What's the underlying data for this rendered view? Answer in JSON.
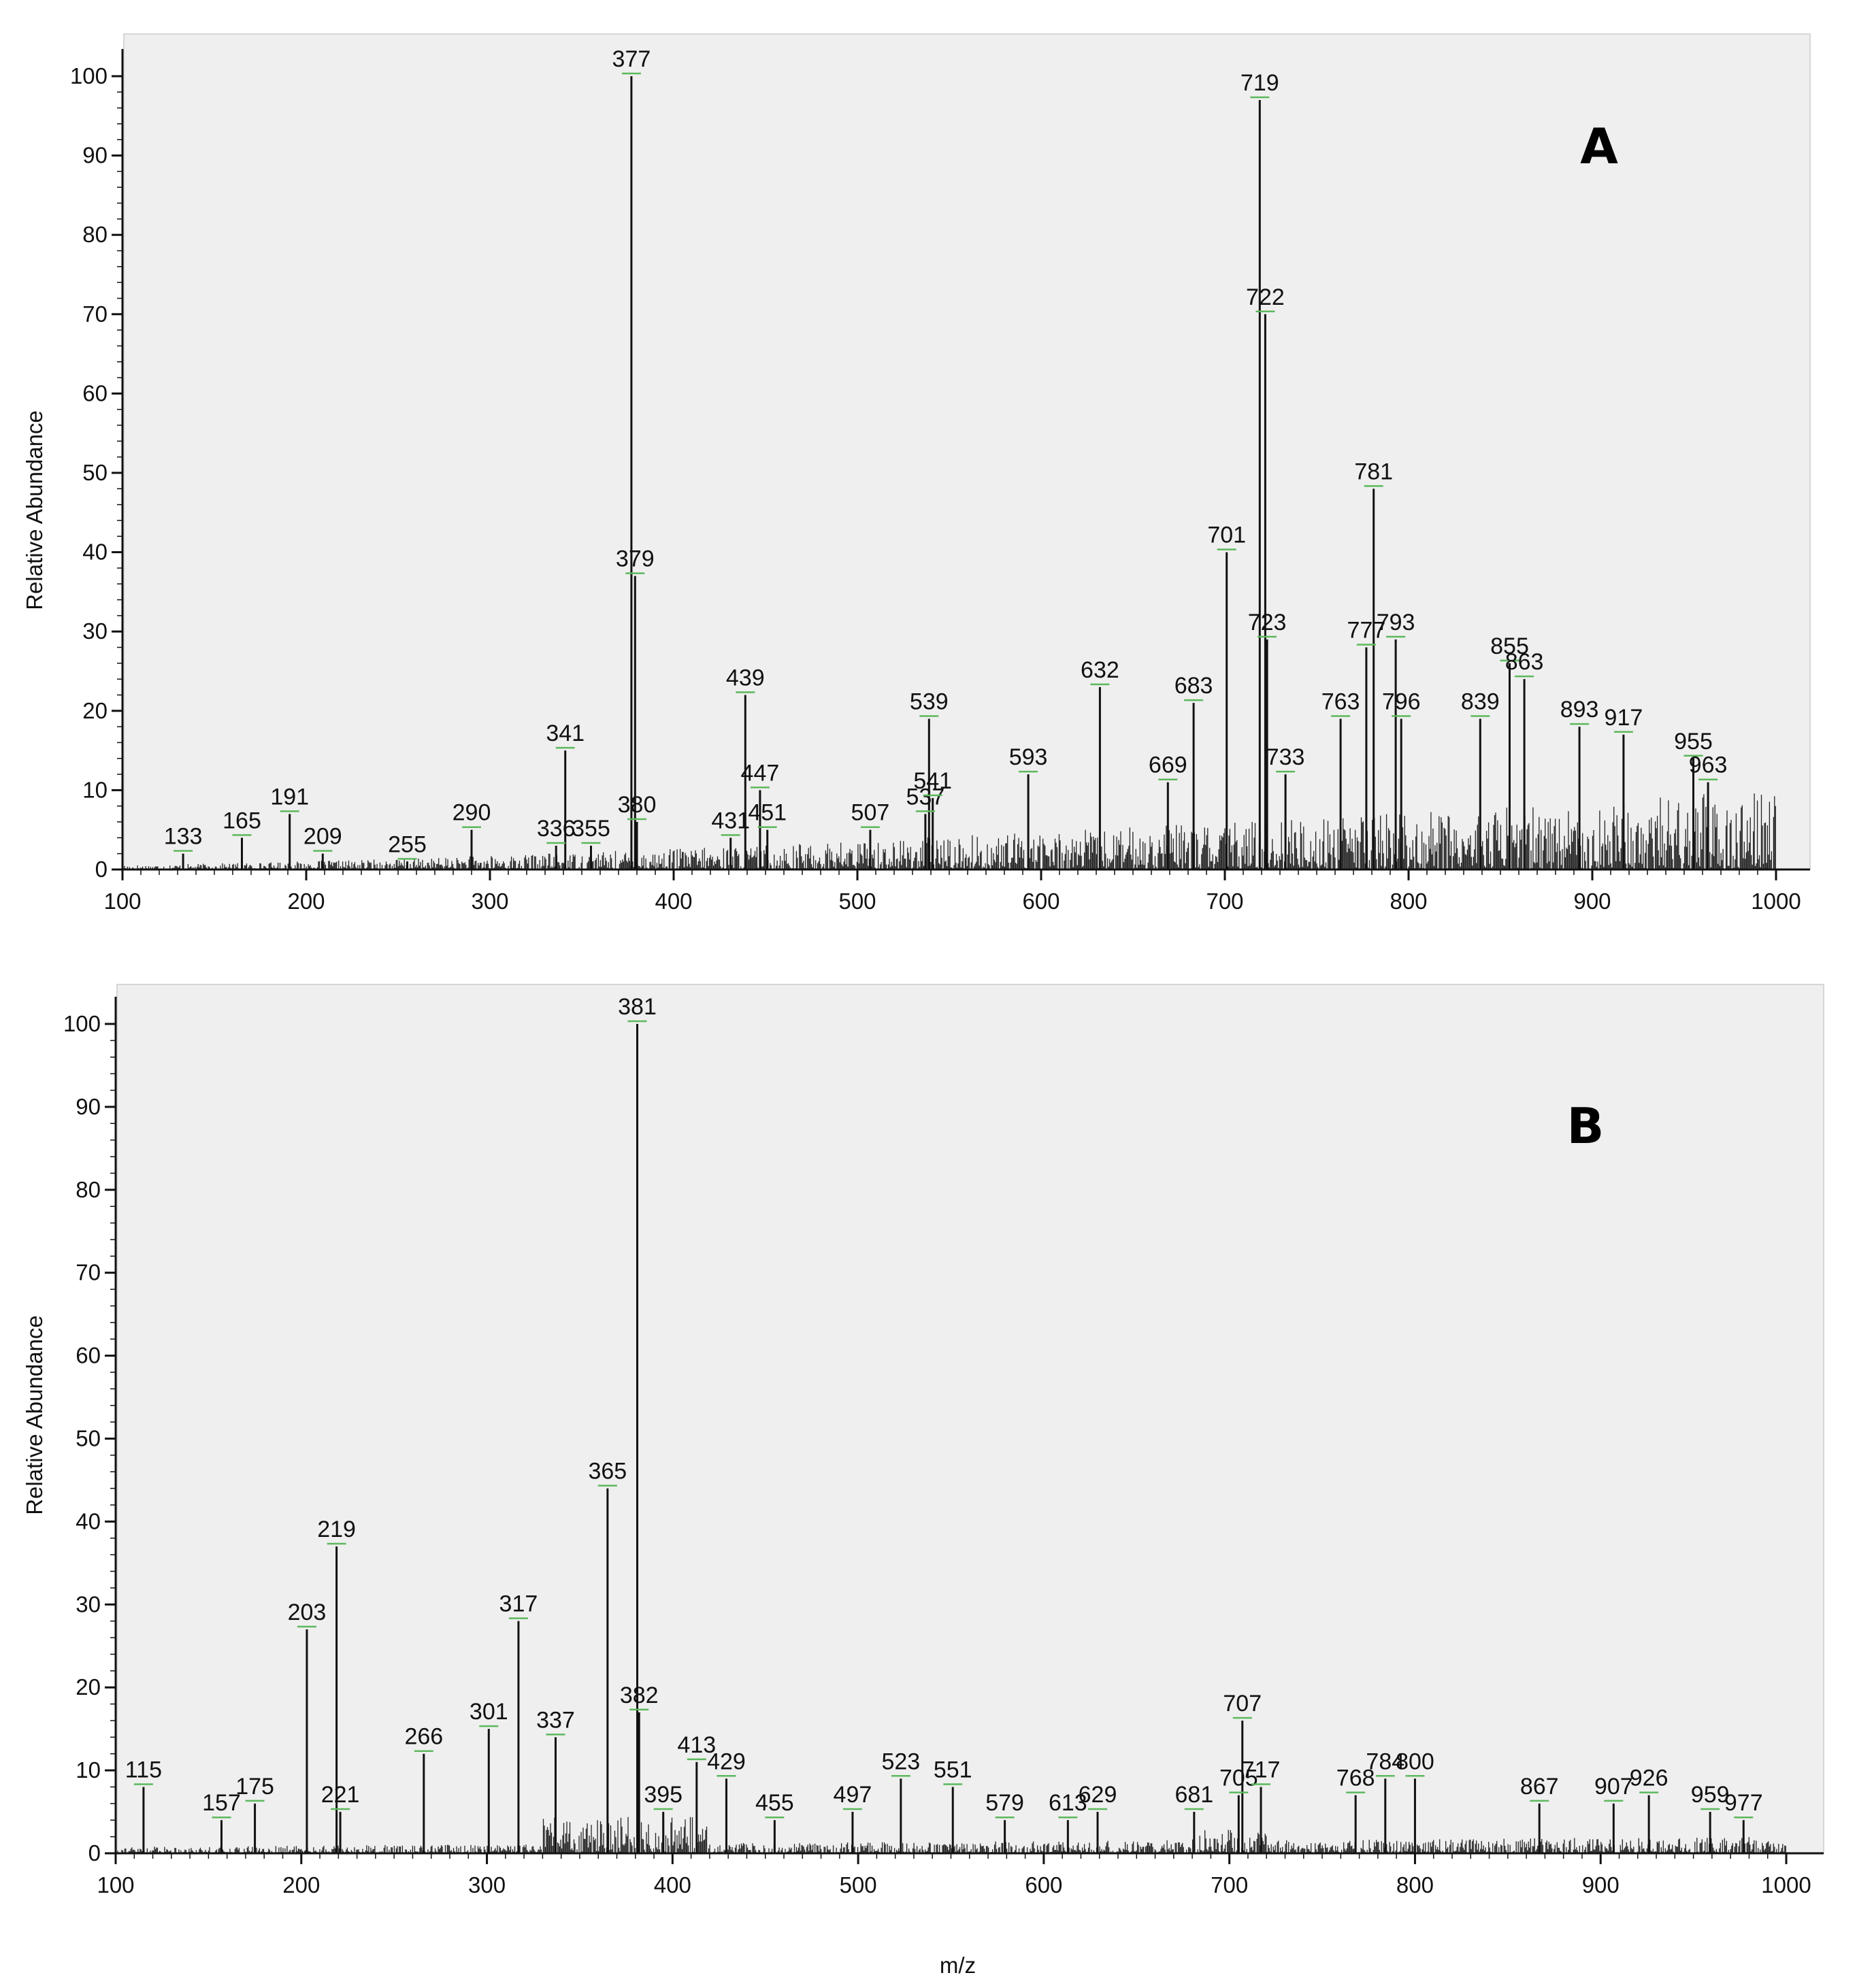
{
  "chart_data": [
    {
      "type": "bar",
      "panel_label": "A",
      "xlabel": "",
      "ylabel": "Relative Abundance",
      "xlim": [
        100,
        1000
      ],
      "ylim": [
        0,
        100
      ],
      "x_ticks": [
        100,
        200,
        300,
        400,
        500,
        600,
        700,
        800,
        900,
        1000
      ],
      "y_ticks": [
        0,
        10,
        20,
        30,
        40,
        50,
        60,
        70,
        80,
        90,
        100
      ],
      "grid": false,
      "legend": "none",
      "peaks": [
        {
          "mz": 133,
          "abundance": 2,
          "label": "133"
        },
        {
          "mz": 165,
          "abundance": 4,
          "label": "165"
        },
        {
          "mz": 191,
          "abundance": 7,
          "label": "191"
        },
        {
          "mz": 209,
          "abundance": 2,
          "label": "209"
        },
        {
          "mz": 255,
          "abundance": 1,
          "label": "255"
        },
        {
          "mz": 290,
          "abundance": 5,
          "label": "290"
        },
        {
          "mz": 336,
          "abundance": 3,
          "label": "336"
        },
        {
          "mz": 341,
          "abundance": 15,
          "label": "341"
        },
        {
          "mz": 355,
          "abundance": 3,
          "label": "355"
        },
        {
          "mz": 377,
          "abundance": 100,
          "label": "377"
        },
        {
          "mz": 379,
          "abundance": 37,
          "label": "379"
        },
        {
          "mz": 380,
          "abundance": 6,
          "label": "380"
        },
        {
          "mz": 431,
          "abundance": 4,
          "label": "431"
        },
        {
          "mz": 439,
          "abundance": 22,
          "label": "439"
        },
        {
          "mz": 447,
          "abundance": 10,
          "label": "447"
        },
        {
          "mz": 451,
          "abundance": 5,
          "label": "451"
        },
        {
          "mz": 507,
          "abundance": 5,
          "label": "507"
        },
        {
          "mz": 537,
          "abundance": 7,
          "label": "537"
        },
        {
          "mz": 539,
          "abundance": 19,
          "label": "539"
        },
        {
          "mz": 541,
          "abundance": 9,
          "label": "541"
        },
        {
          "mz": 593,
          "abundance": 12,
          "label": "593"
        },
        {
          "mz": 632,
          "abundance": 23,
          "label": "632"
        },
        {
          "mz": 669,
          "abundance": 11,
          "label": "669"
        },
        {
          "mz": 683,
          "abundance": 21,
          "label": "683"
        },
        {
          "mz": 701,
          "abundance": 40,
          "label": "701"
        },
        {
          "mz": 719,
          "abundance": 97,
          "label": "719"
        },
        {
          "mz": 722,
          "abundance": 70,
          "label": "722"
        },
        {
          "mz": 723,
          "abundance": 29,
          "label": "723"
        },
        {
          "mz": 733,
          "abundance": 12,
          "label": "733"
        },
        {
          "mz": 763,
          "abundance": 19,
          "label": "763"
        },
        {
          "mz": 777,
          "abundance": 28,
          "label": "777"
        },
        {
          "mz": 781,
          "abundance": 48,
          "label": "781"
        },
        {
          "mz": 793,
          "abundance": 29,
          "label": "793"
        },
        {
          "mz": 796,
          "abundance": 19,
          "label": "796"
        },
        {
          "mz": 839,
          "abundance": 19,
          "label": "839"
        },
        {
          "mz": 855,
          "abundance": 26,
          "label": "855"
        },
        {
          "mz": 863,
          "abundance": 24,
          "label": "863"
        },
        {
          "mz": 893,
          "abundance": 18,
          "label": "893"
        },
        {
          "mz": 917,
          "abundance": 17,
          "label": "917"
        },
        {
          "mz": 955,
          "abundance": 14,
          "label": "955"
        },
        {
          "mz": 963,
          "abundance": 11,
          "label": "963"
        }
      ]
    },
    {
      "type": "bar",
      "panel_label": "B",
      "xlabel": "m/z",
      "ylabel": "Relative Abundance",
      "xlim": [
        100,
        1000
      ],
      "ylim": [
        0,
        100
      ],
      "x_ticks": [
        100,
        200,
        300,
        400,
        500,
        600,
        700,
        800,
        900,
        1000
      ],
      "y_ticks": [
        0,
        10,
        20,
        30,
        40,
        50,
        60,
        70,
        80,
        90,
        100
      ],
      "grid": false,
      "legend": "none",
      "peaks": [
        {
          "mz": 115,
          "abundance": 8,
          "label": "115"
        },
        {
          "mz": 157,
          "abundance": 4,
          "label": "157"
        },
        {
          "mz": 175,
          "abundance": 6,
          "label": "175"
        },
        {
          "mz": 203,
          "abundance": 27,
          "label": "203"
        },
        {
          "mz": 219,
          "abundance": 37,
          "label": "219"
        },
        {
          "mz": 221,
          "abundance": 5,
          "label": "221"
        },
        {
          "mz": 266,
          "abundance": 12,
          "label": "266"
        },
        {
          "mz": 301,
          "abundance": 15,
          "label": "301"
        },
        {
          "mz": 317,
          "abundance": 28,
          "label": "317"
        },
        {
          "mz": 337,
          "abundance": 14,
          "label": "337"
        },
        {
          "mz": 365,
          "abundance": 44,
          "label": "365"
        },
        {
          "mz": 381,
          "abundance": 100,
          "label": "381"
        },
        {
          "mz": 382,
          "abundance": 17,
          "label": "382"
        },
        {
          "mz": 395,
          "abundance": 5,
          "label": "395"
        },
        {
          "mz": 413,
          "abundance": 11,
          "label": "413"
        },
        {
          "mz": 429,
          "abundance": 9,
          "label": "429"
        },
        {
          "mz": 455,
          "abundance": 4,
          "label": "455"
        },
        {
          "mz": 497,
          "abundance": 5,
          "label": "497"
        },
        {
          "mz": 523,
          "abundance": 9,
          "label": "523"
        },
        {
          "mz": 551,
          "abundance": 8,
          "label": "551"
        },
        {
          "mz": 579,
          "abundance": 4,
          "label": "579"
        },
        {
          "mz": 613,
          "abundance": 4,
          "label": "613"
        },
        {
          "mz": 629,
          "abundance": 5,
          "label": "629"
        },
        {
          "mz": 681,
          "abundance": 5,
          "label": "681"
        },
        {
          "mz": 705,
          "abundance": 7,
          "label": "705"
        },
        {
          "mz": 707,
          "abundance": 16,
          "label": "707"
        },
        {
          "mz": 717,
          "abundance": 8,
          "label": "717"
        },
        {
          "mz": 768,
          "abundance": 7,
          "label": "768"
        },
        {
          "mz": 784,
          "abundance": 9,
          "label": "784"
        },
        {
          "mz": 800,
          "abundance": 9,
          "label": "800"
        },
        {
          "mz": 867,
          "abundance": 6,
          "label": "867"
        },
        {
          "mz": 907,
          "abundance": 6,
          "label": "907"
        },
        {
          "mz": 926,
          "abundance": 7,
          "label": "926"
        },
        {
          "mz": 959,
          "abundance": 5,
          "label": "959"
        },
        {
          "mz": 977,
          "abundance": 4,
          "label": "977"
        }
      ]
    }
  ],
  "colors": {
    "plot_background": "#efefef",
    "peak": "#111111",
    "noise": "#222222",
    "label_leader": "#5cb85c",
    "axis": "#111111"
  }
}
